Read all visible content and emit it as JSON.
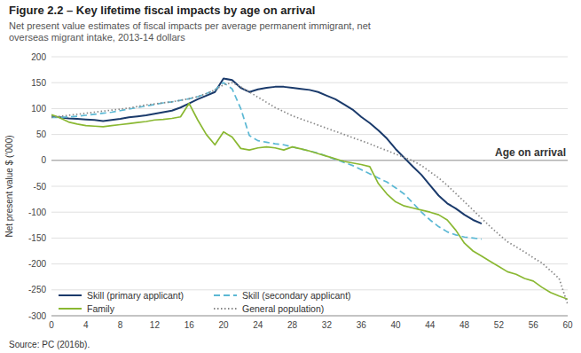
{
  "chart_data": {
    "type": "line",
    "title": "Figure 2.2 – Key lifetime fiscal impacts by age on arrival",
    "subtitle": "Net present value estimates of fiscal impacts per average permanent immigrant, net\noverseas migrant intake, 2013-14 dollars",
    "source": "Source: PC (2016b).",
    "xlabel": "Age on arrival",
    "ylabel": "Net present value $ (’000)",
    "xlim": [
      0,
      60
    ],
    "ylim": [
      -300,
      200
    ],
    "xticks": [
      0,
      4,
      8,
      12,
      16,
      20,
      24,
      28,
      32,
      36,
      40,
      44,
      48,
      52,
      56,
      60
    ],
    "yticks": [
      -300,
      -250,
      -200,
      -150,
      -100,
      -50,
      0,
      50,
      100,
      150,
      200
    ],
    "grid": true,
    "legend": "lower left",
    "series": [
      {
        "name": "Skill (primary applicant)",
        "color": "#1a3a6b",
        "line_style": "solid",
        "x": [
          0,
          1,
          2,
          3,
          4,
          5,
          6,
          7,
          8,
          9,
          10,
          11,
          12,
          13,
          14,
          15,
          16,
          17,
          18,
          19,
          20,
          21,
          22,
          23,
          24,
          25,
          26,
          27,
          28,
          29,
          30,
          31,
          32,
          33,
          34,
          35,
          36,
          37,
          38,
          39,
          40,
          41,
          42,
          43,
          44,
          45,
          46,
          47,
          48,
          49,
          50
        ],
        "values": [
          85,
          83,
          81,
          80,
          79,
          78,
          76,
          78,
          80,
          83,
          85,
          87,
          90,
          93,
          96,
          102,
          110,
          118,
          125,
          132,
          158,
          155,
          140,
          132,
          137,
          140,
          142,
          142,
          140,
          138,
          136,
          132,
          125,
          118,
          108,
          98,
          84,
          72,
          58,
          42,
          22,
          5,
          -12,
          -28,
          -48,
          -68,
          -83,
          -93,
          -105,
          -115,
          -122
        ]
      },
      {
        "name": "Skill (secondary applicant)",
        "color": "#5bb8d4",
        "line_style": "dashed",
        "x": [
          0,
          1,
          2,
          3,
          4,
          5,
          6,
          7,
          8,
          9,
          10,
          11,
          12,
          13,
          14,
          15,
          16,
          17,
          18,
          19,
          20,
          21,
          22,
          23,
          24,
          25,
          26,
          27,
          28,
          29,
          30,
          31,
          32,
          33,
          34,
          35,
          36,
          37,
          38,
          39,
          40,
          41,
          42,
          43,
          44,
          45,
          46,
          47,
          48,
          49,
          50
        ],
        "values": [
          83,
          83,
          84,
          85,
          87,
          89,
          91,
          93,
          96,
          99,
          102,
          105,
          108,
          111,
          113,
          116,
          119,
          123,
          129,
          136,
          150,
          138,
          100,
          48,
          38,
          35,
          32,
          30,
          26,
          22,
          18,
          14,
          8,
          2,
          -4,
          -10,
          -18,
          -26,
          -34,
          -42,
          -53,
          -65,
          -82,
          -100,
          -115,
          -128,
          -138,
          -144,
          -148,
          -150,
          -152
        ]
      },
      {
        "name": "Family",
        "color": "#8ab832",
        "line_style": "solid",
        "x": [
          0,
          1,
          2,
          3,
          4,
          5,
          6,
          7,
          8,
          9,
          10,
          11,
          12,
          13,
          14,
          15,
          16,
          17,
          18,
          19,
          20,
          21,
          22,
          23,
          24,
          25,
          26,
          27,
          28,
          29,
          30,
          31,
          32,
          33,
          34,
          35,
          36,
          37,
          38,
          39,
          40,
          41,
          42,
          43,
          44,
          45,
          46,
          47,
          48,
          49,
          50,
          51,
          52,
          53,
          54,
          55,
          56,
          57,
          58,
          59,
          60
        ],
        "values": [
          88,
          82,
          74,
          70,
          67,
          66,
          65,
          67,
          69,
          71,
          73,
          75,
          78,
          79,
          81,
          84,
          110,
          78,
          50,
          30,
          55,
          45,
          23,
          20,
          24,
          26,
          24,
          20,
          26,
          22,
          18,
          13,
          8,
          3,
          -2,
          -5,
          -8,
          -12,
          -45,
          -65,
          -80,
          -88,
          -92,
          -96,
          -100,
          -105,
          -115,
          -135,
          -160,
          -175,
          -185,
          -195,
          -205,
          -215,
          -220,
          -228,
          -233,
          -245,
          -255,
          -262,
          -268
        ]
      },
      {
        "name": "General population)",
        "color": "#888888",
        "line_style": "dotted",
        "x": [
          0,
          1,
          2,
          3,
          4,
          5,
          6,
          7,
          8,
          9,
          10,
          11,
          12,
          13,
          14,
          15,
          16,
          17,
          18,
          19,
          20,
          21,
          22,
          23,
          24,
          25,
          26,
          27,
          28,
          29,
          30,
          31,
          32,
          33,
          34,
          35,
          36,
          37,
          38,
          39,
          40,
          41,
          42,
          43,
          44,
          45,
          46,
          47,
          48,
          49,
          50,
          51,
          52,
          53,
          54,
          55,
          56,
          57,
          58,
          59,
          60
        ],
        "values": [
          83,
          85,
          87,
          89,
          91,
          93,
          95,
          97,
          99,
          101,
          104,
          107,
          109,
          111,
          113,
          116,
          119,
          123,
          129,
          136,
          146,
          150,
          142,
          132,
          122,
          112,
          102,
          94,
          86,
          80,
          74,
          68,
          62,
          56,
          50,
          44,
          38,
          32,
          25,
          19,
          12,
          6,
          -1,
          -10,
          -22,
          -34,
          -48,
          -64,
          -80,
          -96,
          -112,
          -128,
          -143,
          -157,
          -167,
          -177,
          -188,
          -198,
          -213,
          -228,
          -278
        ]
      }
    ]
  }
}
